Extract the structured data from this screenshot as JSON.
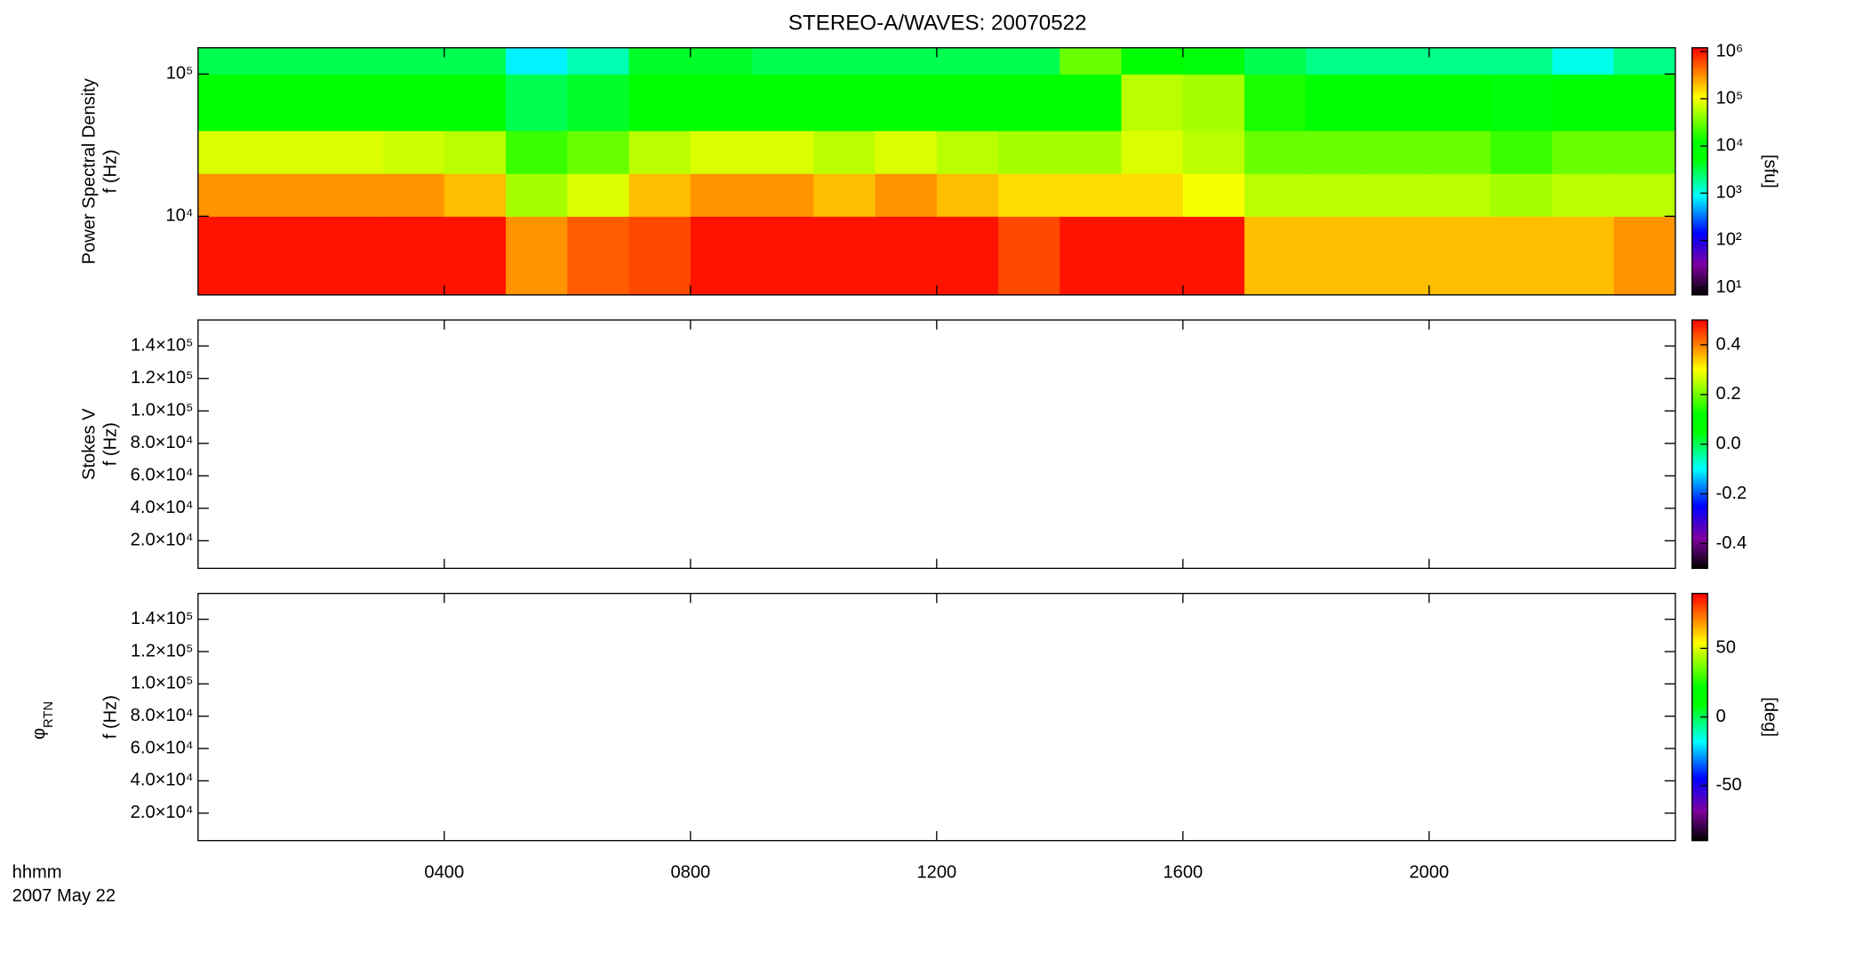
{
  "title": "STEREO-A/WAVES: 20070522",
  "x_label_lines": [
    "hhmm",
    "2007 May 22"
  ],
  "xlim": [
    0,
    24
  ],
  "xticks": [
    {
      "value": 4,
      "label": "0400"
    },
    {
      "value": 8,
      "label": "0800"
    },
    {
      "value": 12,
      "label": "1200"
    },
    {
      "value": 16,
      "label": "1600"
    },
    {
      "value": 20,
      "label": "2000"
    }
  ],
  "colormap": [
    {
      "stop": 0,
      "color": "#000000"
    },
    {
      "stop": 0.12,
      "color": "#8000a0"
    },
    {
      "stop": 0.25,
      "color": "#0000ff"
    },
    {
      "stop": 0.4,
      "color": "#00ffff"
    },
    {
      "stop": 0.55,
      "color": "#00ff00"
    },
    {
      "stop": 0.62,
      "color": "#00ff00"
    },
    {
      "stop": 0.8,
      "color": "#ffff00"
    },
    {
      "stop": 1,
      "color": "#ff0000"
    }
  ],
  "chart_data": [
    {
      "type": "heatmap",
      "ylabel_lines": [
        "Power Spectral Density",
        "f (Hz)"
      ],
      "ylog": true,
      "ylim": [
        2800,
        153000
      ],
      "yticks": [
        {
          "value": 10000,
          "label": "10⁴"
        },
        {
          "value": 100000,
          "label": "10⁵"
        }
      ],
      "colorbar": {
        "label": "[sfu]",
        "log": true,
        "lim": [
          7,
          1200000
        ],
        "ticks": [
          {
            "value": 10,
            "label": "10¹"
          },
          {
            "value": 100,
            "label": "10²"
          },
          {
            "value": 1000,
            "label": "10³"
          },
          {
            "value": 10000,
            "label": "10⁴"
          },
          {
            "value": 100000,
            "label": "10⁵"
          },
          {
            "value": 1000000,
            "label": "10⁶"
          }
        ]
      },
      "x_bins": [
        0,
        1,
        2,
        3,
        4,
        5,
        6,
        7,
        8,
        9,
        10,
        11,
        12,
        13,
        14,
        15,
        16,
        17,
        18,
        19,
        20,
        21,
        22,
        23,
        24
      ],
      "y_bins": [
        2800,
        10000,
        20000,
        40000,
        100000,
        153000
      ],
      "z": [
        [
          1000000,
          1000000,
          1000000,
          1000000,
          1000000,
          300000,
          500000,
          600000,
          1000000,
          1000000,
          1000000,
          1000000,
          1000000,
          600000,
          1000000,
          1000000,
          1000000,
          200000,
          200000,
          200000,
          200000,
          200000,
          200000,
          300000
        ],
        [
          300000,
          300000,
          300000,
          300000,
          200000,
          50000,
          80000,
          200000,
          300000,
          300000,
          200000,
          300000,
          200000,
          150000,
          150000,
          150000,
          100000,
          60000,
          60000,
          60000,
          60000,
          50000,
          60000,
          60000
        ],
        [
          80000,
          80000,
          80000,
          70000,
          60000,
          20000,
          30000,
          60000,
          80000,
          80000,
          60000,
          80000,
          60000,
          50000,
          50000,
          80000,
          60000,
          30000,
          30000,
          30000,
          30000,
          20000,
          30000,
          30000
        ],
        [
          10000,
          10000,
          10000,
          10000,
          10000,
          3000,
          4000,
          10000,
          10000,
          10000,
          10000,
          10000,
          10000,
          10000,
          10000,
          60000,
          50000,
          15000,
          10000,
          8000,
          8000,
          5000,
          6000,
          8000
        ],
        [
          3000,
          3000,
          3000,
          3000,
          3000,
          800,
          1500,
          4000,
          4000,
          3000,
          3000,
          3000,
          3000,
          3000,
          30000,
          10000,
          5000,
          3000,
          2000,
          2000,
          2000,
          2000,
          1000,
          2000
        ]
      ]
    },
    {
      "type": "heatmap",
      "ylabel_lines": [
        "Stokes V",
        "f (Hz)"
      ],
      "ylog": false,
      "ylim": [
        3000,
        156000
      ],
      "yticks": [
        {
          "value": 20000,
          "label": "2.0×10⁴"
        },
        {
          "value": 40000,
          "label": "4.0×10⁴"
        },
        {
          "value": 60000,
          "label": "6.0×10⁴"
        },
        {
          "value": 80000,
          "label": "8.0×10⁴"
        },
        {
          "value": 100000,
          "label": "1.0×10⁵"
        },
        {
          "value": 120000,
          "label": "1.2×10⁵"
        },
        {
          "value": 140000,
          "label": "1.4×10⁵"
        }
      ],
      "colorbar": {
        "log": false,
        "lim": [
          -0.5,
          0.5
        ],
        "ticks": [
          -0.4,
          -0.2,
          {
            "value": 0,
            "label": "0.0"
          },
          0.2,
          0.4
        ]
      }
    },
    {
      "type": "heatmap",
      "ylabel_symbol": "φ",
      "ylabel_subscript": "RTN",
      "ylabel_lines": [
        "f (Hz)"
      ],
      "ylog": false,
      "ylim": [
        3000,
        156000
      ],
      "yticks": [
        {
          "value": 20000,
          "label": "2.0×10⁴"
        },
        {
          "value": 40000,
          "label": "4.0×10⁴"
        },
        {
          "value": 60000,
          "label": "6.0×10⁴"
        },
        {
          "value": 80000,
          "label": "8.0×10⁴"
        },
        {
          "value": 100000,
          "label": "1.0×10⁵"
        },
        {
          "value": 120000,
          "label": "1.2×10⁵"
        },
        {
          "value": 140000,
          "label": "1.4×10⁵"
        }
      ],
      "colorbar": {
        "label": "[deg]",
        "log": false,
        "lim": [
          -90,
          90
        ],
        "ticks": [
          -50,
          0,
          50
        ]
      }
    }
  ]
}
